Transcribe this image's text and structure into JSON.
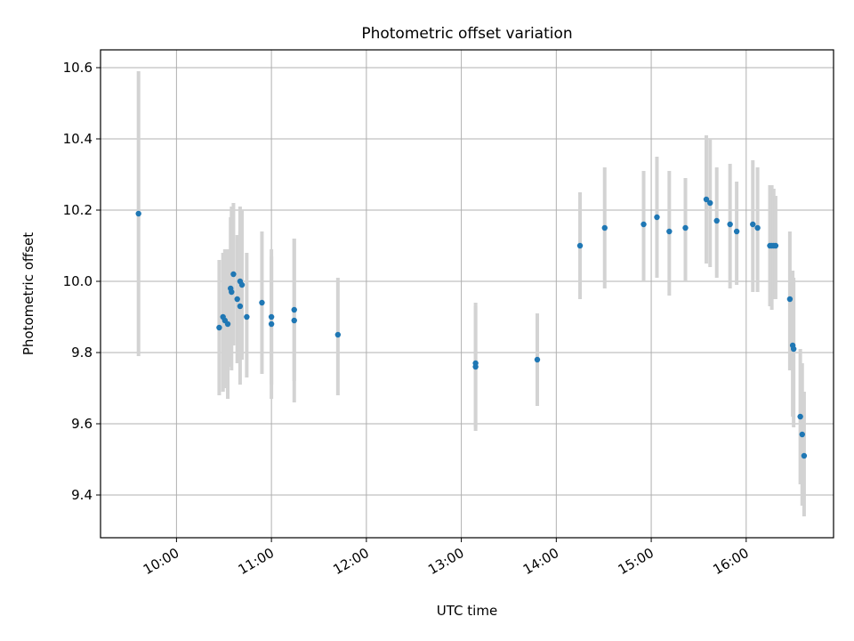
{
  "chart_data": {
    "type": "scatter",
    "title": "Photometric offset variation",
    "xlabel": "UTC time",
    "ylabel": "Photometric offset",
    "x_unit": "hours (UTC)",
    "xlim": [
      9.2,
      16.92
    ],
    "ylim": [
      9.28,
      10.65
    ],
    "x_ticks": [
      {
        "value": 10,
        "label": "10:00"
      },
      {
        "value": 11,
        "label": "11:00"
      },
      {
        "value": 12,
        "label": "12:00"
      },
      {
        "value": 13,
        "label": "13:00"
      },
      {
        "value": 14,
        "label": "14:00"
      },
      {
        "value": 15,
        "label": "15:00"
      },
      {
        "value": 16,
        "label": "16:00"
      }
    ],
    "y_ticks": [
      {
        "value": 9.4,
        "label": "9.4"
      },
      {
        "value": 9.6,
        "label": "9.6"
      },
      {
        "value": 9.8,
        "label": "9.8"
      },
      {
        "value": 10.0,
        "label": "10.0"
      },
      {
        "value": 10.2,
        "label": "10.2"
      },
      {
        "value": 10.4,
        "label": "10.4"
      },
      {
        "value": 10.6,
        "label": "10.6"
      }
    ],
    "grid": true,
    "colors": {
      "point": "#1f77b4",
      "errorbar": "#d3d3d3",
      "grid": "#b0b0b0"
    },
    "points": [
      {
        "x": 9.6,
        "y": 10.19,
        "lo": 9.79,
        "hi": 10.59
      },
      {
        "x": 10.45,
        "y": 9.87,
        "lo": 9.68,
        "hi": 10.06
      },
      {
        "x": 10.49,
        "y": 9.9,
        "lo": 9.69,
        "hi": 10.08
      },
      {
        "x": 10.51,
        "y": 9.89,
        "lo": 9.7,
        "hi": 10.09
      },
      {
        "x": 10.54,
        "y": 9.88,
        "lo": 9.67,
        "hi": 10.09
      },
      {
        "x": 10.57,
        "y": 9.98,
        "lo": 9.76,
        "hi": 10.18
      },
      {
        "x": 10.58,
        "y": 9.97,
        "lo": 9.75,
        "hi": 10.21
      },
      {
        "x": 10.6,
        "y": 10.02,
        "lo": 9.82,
        "hi": 10.22
      },
      {
        "x": 10.64,
        "y": 9.95,
        "lo": 9.77,
        "hi": 10.13
      },
      {
        "x": 10.67,
        "y": 9.93,
        "lo": 9.71,
        "hi": 10.14
      },
      {
        "x": 10.67,
        "y": 10.0,
        "lo": 9.79,
        "hi": 10.21
      },
      {
        "x": 10.69,
        "y": 9.99,
        "lo": 9.78,
        "hi": 10.2
      },
      {
        "x": 10.74,
        "y": 9.9,
        "lo": 9.73,
        "hi": 10.08
      },
      {
        "x": 10.9,
        "y": 9.94,
        "lo": 9.74,
        "hi": 10.14
      },
      {
        "x": 11.0,
        "y": 9.9,
        "lo": 9.71,
        "hi": 10.09
      },
      {
        "x": 11.0,
        "y": 9.88,
        "lo": 9.67,
        "hi": 10.07
      },
      {
        "x": 11.24,
        "y": 9.92,
        "lo": 9.72,
        "hi": 10.12
      },
      {
        "x": 11.24,
        "y": 9.89,
        "lo": 9.66,
        "hi": 10.12
      },
      {
        "x": 11.7,
        "y": 9.85,
        "lo": 9.68,
        "hi": 10.01
      },
      {
        "x": 13.15,
        "y": 9.76,
        "lo": 9.58,
        "hi": 9.93
      },
      {
        "x": 13.15,
        "y": 9.77,
        "lo": 9.59,
        "hi": 9.94
      },
      {
        "x": 13.8,
        "y": 9.78,
        "lo": 9.65,
        "hi": 9.91
      },
      {
        "x": 14.25,
        "y": 10.1,
        "lo": 9.95,
        "hi": 10.25
      },
      {
        "x": 14.51,
        "y": 10.15,
        "lo": 9.98,
        "hi": 10.32
      },
      {
        "x": 14.92,
        "y": 10.16,
        "lo": 10.0,
        "hi": 10.31
      },
      {
        "x": 15.06,
        "y": 10.18,
        "lo": 10.01,
        "hi": 10.35
      },
      {
        "x": 15.19,
        "y": 10.14,
        "lo": 9.96,
        "hi": 10.31
      },
      {
        "x": 15.36,
        "y": 10.15,
        "lo": 10.0,
        "hi": 10.29
      },
      {
        "x": 15.58,
        "y": 10.23,
        "lo": 10.05,
        "hi": 10.41
      },
      {
        "x": 15.62,
        "y": 10.22,
        "lo": 10.04,
        "hi": 10.4
      },
      {
        "x": 15.69,
        "y": 10.17,
        "lo": 10.01,
        "hi": 10.32
      },
      {
        "x": 15.83,
        "y": 10.16,
        "lo": 9.98,
        "hi": 10.33
      },
      {
        "x": 15.9,
        "y": 10.14,
        "lo": 9.99,
        "hi": 10.28
      },
      {
        "x": 16.07,
        "y": 10.16,
        "lo": 9.97,
        "hi": 10.34
      },
      {
        "x": 16.12,
        "y": 10.15,
        "lo": 9.97,
        "hi": 10.32
      },
      {
        "x": 16.25,
        "y": 10.1,
        "lo": 9.93,
        "hi": 10.27
      },
      {
        "x": 16.27,
        "y": 10.1,
        "lo": 9.92,
        "hi": 10.27
      },
      {
        "x": 16.29,
        "y": 10.1,
        "lo": 9.95,
        "hi": 10.26
      },
      {
        "x": 16.31,
        "y": 10.1,
        "lo": 9.95,
        "hi": 10.24
      },
      {
        "x": 16.46,
        "y": 9.95,
        "lo": 9.75,
        "hi": 10.14
      },
      {
        "x": 16.49,
        "y": 9.82,
        "lo": 9.62,
        "hi": 10.03
      },
      {
        "x": 16.5,
        "y": 9.81,
        "lo": 9.59,
        "hi": 10.01
      },
      {
        "x": 16.57,
        "y": 9.62,
        "lo": 9.43,
        "hi": 9.81
      },
      {
        "x": 16.59,
        "y": 9.57,
        "lo": 9.37,
        "hi": 9.77
      },
      {
        "x": 16.61,
        "y": 9.51,
        "lo": 9.34,
        "hi": 9.69
      }
    ]
  }
}
